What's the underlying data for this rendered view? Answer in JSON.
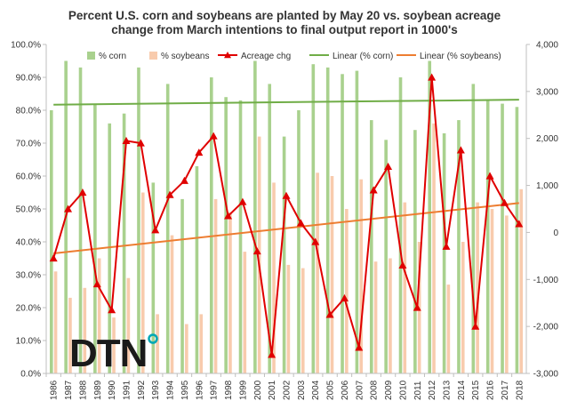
{
  "chart_data": {
    "type": "bar",
    "title_line1": "Percent U.S. corn and soybeans are planted by May 20 vs. soybean acreage",
    "title_line2": "change from March intentions to final output report in 1000's",
    "categories": [
      "1986",
      "1987",
      "1988",
      "1989",
      "1990",
      "1991",
      "1992",
      "1993",
      "1994",
      "1995",
      "1996",
      "1997",
      "1998",
      "1999",
      "2000",
      "2001",
      "2002",
      "2003",
      "2004",
      "2005",
      "2006",
      "2007",
      "2008",
      "2009",
      "2010",
      "2011",
      "2012",
      "2013",
      "2014",
      "2015",
      "2016",
      "2017",
      "2018"
    ],
    "y_left": {
      "min": 0,
      "max": 100,
      "ticks": [
        "0.0%",
        "10.0%",
        "20.0%",
        "30.0%",
        "40.0%",
        "50.0%",
        "60.0%",
        "70.0%",
        "80.0%",
        "90.0%",
        "100.0%"
      ]
    },
    "y_right": {
      "min": -3000,
      "max": 4000,
      "ticks": [
        "-3,000",
        "-2,000",
        "-1,000",
        "0",
        "1,000",
        "2,000",
        "3,000",
        "4,000"
      ]
    },
    "series": [
      {
        "name": "% corn",
        "kind": "bar",
        "axis": "left",
        "color": "#a9d18e",
        "values": [
          80,
          95,
          93,
          82,
          76,
          79,
          93,
          58,
          88,
          53,
          63,
          90,
          84,
          83,
          95,
          88,
          72,
          80,
          94,
          93,
          91,
          92,
          77,
          71,
          90,
          74,
          95,
          73,
          77,
          88,
          83,
          82,
          81
        ]
      },
      {
        "name": "% soybeans",
        "kind": "bar",
        "axis": "left",
        "color": "#f8cbad",
        "values": [
          31,
          23,
          26,
          35,
          17,
          29,
          55,
          18,
          42,
          15,
          18,
          53,
          49,
          37,
          72,
          58,
          33,
          32,
          61,
          60,
          50,
          59,
          34,
          35,
          52,
          40,
          76,
          27,
          40,
          52,
          50,
          48,
          56
        ]
      },
      {
        "name": "Acreage chg",
        "kind": "line",
        "axis": "right",
        "color": "#e00000",
        "values": [
          -550,
          500,
          850,
          -1100,
          -1650,
          1950,
          1900,
          50,
          800,
          1100,
          1700,
          2050,
          350,
          650,
          -400,
          -2600,
          780,
          200,
          -200,
          -1750,
          -1400,
          -2450,
          900,
          1400,
          -700,
          -1600,
          3300,
          -300,
          1750,
          -2000,
          1200,
          630,
          180
        ]
      },
      {
        "name": "Linear (% corn)",
        "kind": "trend",
        "axis": "left",
        "color": "#70ad47",
        "from": 81.7,
        "to": 83.2
      },
      {
        "name": "Linear (% soybeans)",
        "kind": "trend",
        "axis": "left",
        "color": "#ed7d31",
        "from": 36.5,
        "to": 51.8
      }
    ],
    "legend_position": "top",
    "grid": false
  },
  "logo": {
    "text": "DTN",
    "color": "#1a1a1a",
    "accent_color": "#00a7b5"
  }
}
